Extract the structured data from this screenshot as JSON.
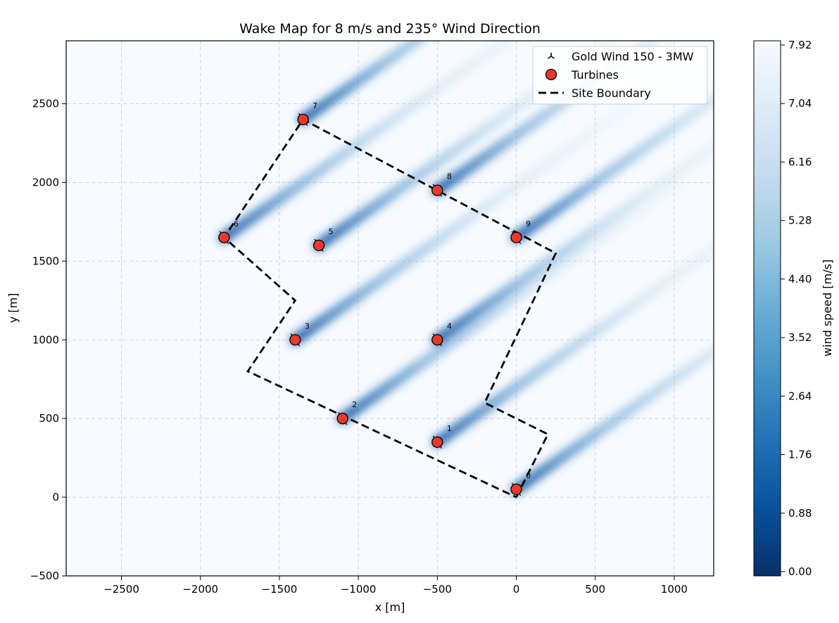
{
  "chart_data": {
    "type": "heatmap",
    "title": "Wake Map for 8 m/s and 235° Wind Direction",
    "xlabel": "x [m]",
    "ylabel": "y [m]",
    "xlim": [
      -2850,
      1250
    ],
    "ylim": [
      -500,
      2900
    ],
    "xticks": [
      -2500,
      -2000,
      -1500,
      -1000,
      -500,
      0,
      500,
      1000
    ],
    "yticks": [
      -500,
      0,
      500,
      1000,
      1500,
      2000,
      2500
    ],
    "grid": true,
    "wind_speed_ms": 8,
    "wind_direction_deg": 235,
    "legend_position": "top-right",
    "legend": [
      {
        "marker": "tri-icon",
        "label": "Gold Wind 150 - 3MW"
      },
      {
        "marker": "red-circle",
        "label": "Turbines"
      },
      {
        "marker": "dashed-line",
        "label": "Site Boundary"
      }
    ],
    "colors": {
      "turbine_fill": "#e8392a",
      "boundary": "#000000",
      "wake_dark": "#1f5fa8",
      "background": "#f7fbff"
    },
    "turbines": [
      {
        "id": "0",
        "x": 0,
        "y": 50
      },
      {
        "id": "1",
        "x": -500,
        "y": 350
      },
      {
        "id": "2",
        "x": -1100,
        "y": 500
      },
      {
        "id": "3",
        "x": -1400,
        "y": 1000
      },
      {
        "id": "4",
        "x": -500,
        "y": 1000
      },
      {
        "id": "5",
        "x": -1250,
        "y": 1600
      },
      {
        "id": "6",
        "x": -1850,
        "y": 1650
      },
      {
        "id": "7",
        "x": -1350,
        "y": 2400
      },
      {
        "id": "8",
        "x": -500,
        "y": 1950
      },
      {
        "id": "9",
        "x": 0,
        "y": 1650
      }
    ],
    "boundary": [
      [
        0,
        0
      ],
      [
        200,
        400
      ],
      [
        -200,
        600
      ],
      [
        250,
        1550
      ],
      [
        -1350,
        2400
      ],
      [
        -1850,
        1650
      ],
      [
        -1400,
        1250
      ],
      [
        -1700,
        800
      ],
      [
        0,
        0
      ]
    ],
    "colorbar": {
      "label": "wind speed [m/s]",
      "min": 0,
      "max": 7.92,
      "ticks": [
        "7.92",
        "7.04",
        "6.16",
        "5.28",
        "4.40",
        "3.52",
        "2.64",
        "1.76",
        "0.88",
        "0.00"
      ]
    }
  }
}
